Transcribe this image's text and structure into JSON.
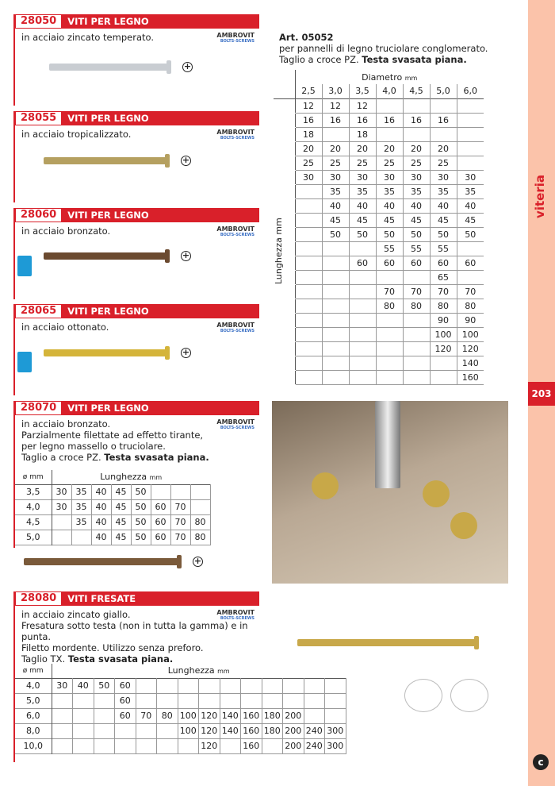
{
  "sections": [
    {
      "code": "28050",
      "title": "VITI PER LEGNO",
      "desc": "in acciaio zincato temperato.",
      "brand": "AMBROVIT",
      "brand_sub": "BOLTS-SCREWS"
    },
    {
      "code": "28055",
      "title": "VITI PER LEGNO",
      "desc": "in acciaio tropicalizzato.",
      "brand": "AMBROVIT",
      "brand_sub": "BOLTS-SCREWS"
    },
    {
      "code": "28060",
      "title": "VITI PER LEGNO",
      "desc": "in acciaio bronzato.",
      "brand": "AMBROVIT",
      "brand_sub": "BOLTS-SCREWS"
    },
    {
      "code": "28065",
      "title": "VITI PER LEGNO",
      "desc": "in acciaio ottonato.",
      "brand": "AMBROVIT",
      "brand_sub": "BOLTS-SCREWS"
    },
    {
      "code": "28070",
      "title": "VITI PER LEGNO",
      "desc_lines": [
        "in acciaio bronzato.",
        "Parzialmente filettate ad effetto tirante,",
        "per legno massello o truciolare."
      ],
      "desc_last": "Taglio a croce PZ. ",
      "desc_bold": "Testa svasata piana.",
      "brand": "AMBROVIT",
      "brand_sub": "BOLTS-SCREWS"
    },
    {
      "code": "28080",
      "title": "VITI FRESATE",
      "desc_lines": [
        "in acciaio zincato giallo.",
        "Fresatura sotto testa (non in tutta la gamma) e in punta.",
        "Filetto mordente. Utilizzo senza preforo."
      ],
      "desc_last": "Taglio TX. ",
      "desc_bold": "Testa svasata piana.",
      "brand": "AMBROVIT",
      "brand_sub": "BOLTS-SCREWS"
    }
  ],
  "art": {
    "title": "Art. 05052",
    "line1": "per pannelli di legno truciolare conglomerato.",
    "line2": "Taglio a croce PZ. ",
    "bold": "Testa svasata piana."
  },
  "main_table": {
    "col_header": "Diametro",
    "unit": "mm",
    "row_header": "Lunghezza mm",
    "diameters": [
      "2,5",
      "3,0",
      "3,5",
      "4,0",
      "4,5",
      "5,0",
      "6,0"
    ],
    "rows": [
      [
        "12",
        "12",
        "12",
        "",
        "",
        "",
        ""
      ],
      [
        "16",
        "16",
        "16",
        "16",
        "16",
        "16",
        ""
      ],
      [
        "18",
        "",
        "18",
        "",
        "",
        "",
        ""
      ],
      [
        "20",
        "20",
        "20",
        "20",
        "20",
        "20",
        ""
      ],
      [
        "25",
        "25",
        "25",
        "25",
        "25",
        "25",
        ""
      ],
      [
        "30",
        "30",
        "30",
        "30",
        "30",
        "30",
        "30"
      ],
      [
        "",
        "35",
        "35",
        "35",
        "35",
        "35",
        "35"
      ],
      [
        "",
        "40",
        "40",
        "40",
        "40",
        "40",
        "40"
      ],
      [
        "",
        "45",
        "45",
        "45",
        "45",
        "45",
        "45"
      ],
      [
        "",
        "50",
        "50",
        "50",
        "50",
        "50",
        "50"
      ],
      [
        "",
        "",
        "",
        "55",
        "55",
        "55",
        ""
      ],
      [
        "",
        "",
        "60",
        "60",
        "60",
        "60",
        "60"
      ],
      [
        "",
        "",
        "",
        "",
        "",
        "65",
        ""
      ],
      [
        "",
        "",
        "",
        "70",
        "70",
        "70",
        "70"
      ],
      [
        "",
        "",
        "",
        "80",
        "80",
        "80",
        "80"
      ],
      [
        "",
        "",
        "",
        "",
        "",
        "90",
        "90"
      ],
      [
        "",
        "",
        "",
        "",
        "",
        "100",
        "100"
      ],
      [
        "",
        "",
        "",
        "",
        "",
        "120",
        "120"
      ],
      [
        "",
        "",
        "",
        "",
        "",
        "",
        "140"
      ],
      [
        "",
        "",
        "",
        "",
        "",
        "",
        "160"
      ]
    ]
  },
  "table_28070": {
    "diam_header": "ø mm",
    "len_header": "Lunghezza",
    "unit": "mm",
    "rows": [
      {
        "d": "3,5",
        "v": [
          "30",
          "35",
          "40",
          "45",
          "50",
          "",
          "",
          ""
        ]
      },
      {
        "d": "4,0",
        "v": [
          "30",
          "35",
          "40",
          "45",
          "50",
          "60",
          "70",
          ""
        ]
      },
      {
        "d": "4,5",
        "v": [
          "",
          "35",
          "40",
          "45",
          "50",
          "60",
          "70",
          "80"
        ]
      },
      {
        "d": "5,0",
        "v": [
          "",
          "",
          "40",
          "45",
          "50",
          "60",
          "70",
          "80"
        ]
      }
    ]
  },
  "table_28080": {
    "diam_header": "ø mm",
    "len_header": "Lunghezza",
    "unit": "mm",
    "rows": [
      {
        "d": "4,0",
        "v": [
          "30",
          "40",
          "50",
          "60",
          "",
          "",
          "",
          "",
          "",
          "",
          "",
          "",
          "",
          ""
        ]
      },
      {
        "d": "5,0",
        "v": [
          "",
          "",
          "",
          "60",
          "",
          "",
          "",
          "",
          "",
          "",
          "",
          "",
          "",
          ""
        ]
      },
      {
        "d": "6,0",
        "v": [
          "",
          "",
          "",
          "60",
          "70",
          "80",
          "100",
          "120",
          "140",
          "160",
          "180",
          "200",
          "",
          ""
        ]
      },
      {
        "d": "8,0",
        "v": [
          "",
          "",
          "",
          "",
          "",
          "",
          "100",
          "120",
          "140",
          "160",
          "180",
          "200",
          "240",
          "300"
        ]
      },
      {
        "d": "10,0",
        "v": [
          "",
          "",
          "",
          "",
          "",
          "",
          "",
          "120",
          "",
          "160",
          "",
          "200",
          "240",
          "300"
        ]
      }
    ]
  },
  "sidebar": {
    "category": "viteria",
    "page": "203"
  },
  "colors": {
    "accent": "#d9202a",
    "sidebar": "#fbc3aa"
  }
}
